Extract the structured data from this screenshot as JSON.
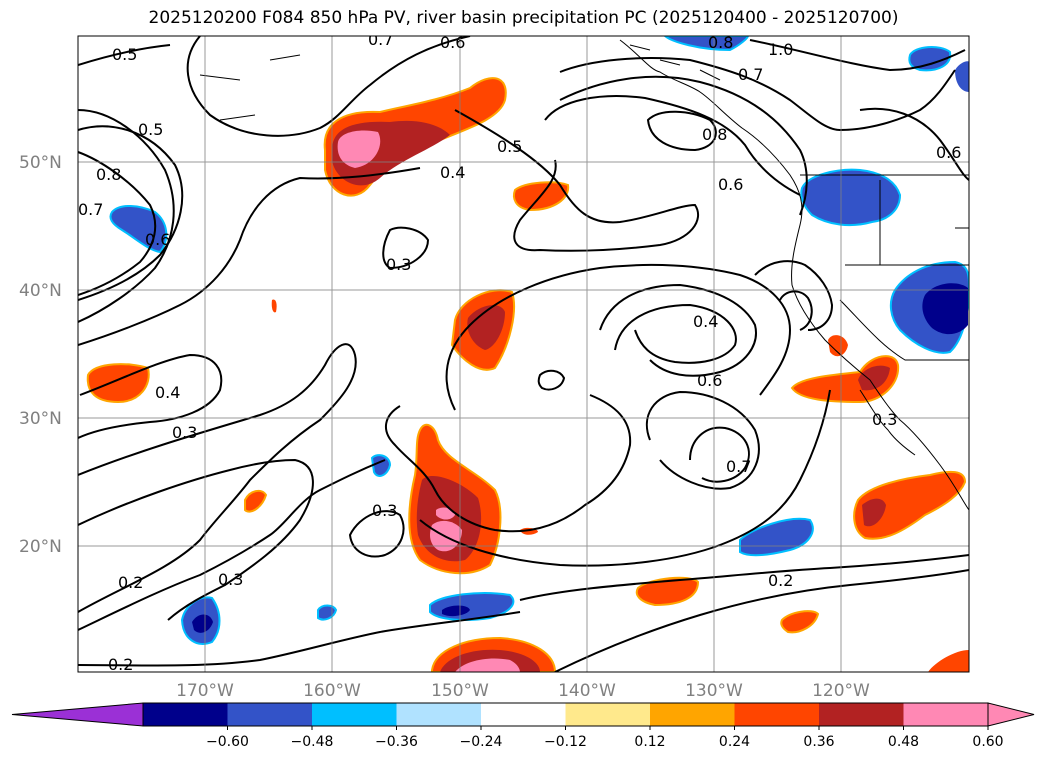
{
  "title": "2025120200 F084 850 hPa PV, river basin precipitation PC (2025120400 - 2025120700)",
  "lat_labels": [
    "50°N",
    "40°N",
    "30°N",
    "20°N"
  ],
  "lon_labels": [
    "170°W",
    "160°W",
    "150°W",
    "140°W",
    "130°W",
    "120°W"
  ],
  "contour_labels": [
    "0.5",
    "0.7",
    "0.6",
    "1.0",
    "0.7",
    "0.8",
    "0.8",
    "0.5",
    "0.5",
    "0.8",
    "0.7",
    "0.6",
    "0.4",
    "0.6",
    "0.6",
    "0.3",
    "0.4",
    "0.6",
    "0.4",
    "0.3",
    "0.7",
    "0.3",
    "0.3",
    "0.2",
    "0.3",
    "0.2",
    "0.2"
  ],
  "colorbar": {
    "ticks": [
      "−0.60",
      "−0.48",
      "−0.36",
      "−0.24",
      "−0.12",
      "0.12",
      "0.24",
      "0.36",
      "0.48",
      "0.60"
    ],
    "colors": {
      "under": "#9b30d6",
      "bins": [
        "#00008b",
        "#3353c8",
        "#00bfff",
        "#b0e2ff",
        "#ffffff",
        "#ffe98c",
        "#ffa500",
        "#ff4500",
        "#b22222",
        "#ff88b4"
      ],
      "over": "#ff88b4"
    }
  },
  "field_colors": {
    "neg_strong": "#00008b",
    "neg_mid": "#3353c8",
    "neg_light": "#00bfff",
    "pos_light": "#ffa500",
    "pos_mid": "#ff4500",
    "pos_strong": "#b22222",
    "pos_max": "#ff88b4"
  }
}
